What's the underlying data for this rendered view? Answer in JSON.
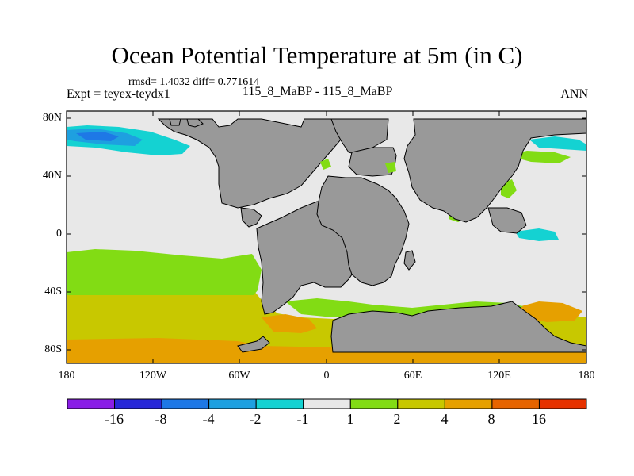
{
  "title": "Ocean Potential Temperature at 5m (in C)",
  "stats": "rmsd= 1.4032 diff= 0.771614",
  "expt_label": "Expt = teyex-teydx1",
  "case_label": "115_8_MaBP - 115_8_MaBP",
  "season_label": "ANN",
  "y_ticks": [
    "80N",
    "40N",
    "0",
    "40S",
    "80S"
  ],
  "x_ticks": [
    "180",
    "120W",
    "60W",
    "0",
    "60E",
    "120E",
    "180"
  ],
  "colorbar": {
    "colors": [
      "#8a1ee6",
      "#2828d8",
      "#1e78e6",
      "#1ea0e0",
      "#14d2d2",
      "#e8e8e8",
      "#82dc14",
      "#c8c800",
      "#e6a000",
      "#e66400",
      "#e63200"
    ],
    "labels": [
      "-16",
      "-8",
      "-4",
      "-2",
      "-1",
      "1",
      "2",
      "4",
      "8",
      "16"
    ]
  },
  "map_colors": {
    "land": "#999999",
    "neutral": "#e8e8e8",
    "cyan": "#14d2d2",
    "light_blue": "#1ea0e0",
    "blue": "#1e78e6",
    "green": "#82dc14",
    "yellow": "#c8c800",
    "orange": "#e6a000"
  }
}
